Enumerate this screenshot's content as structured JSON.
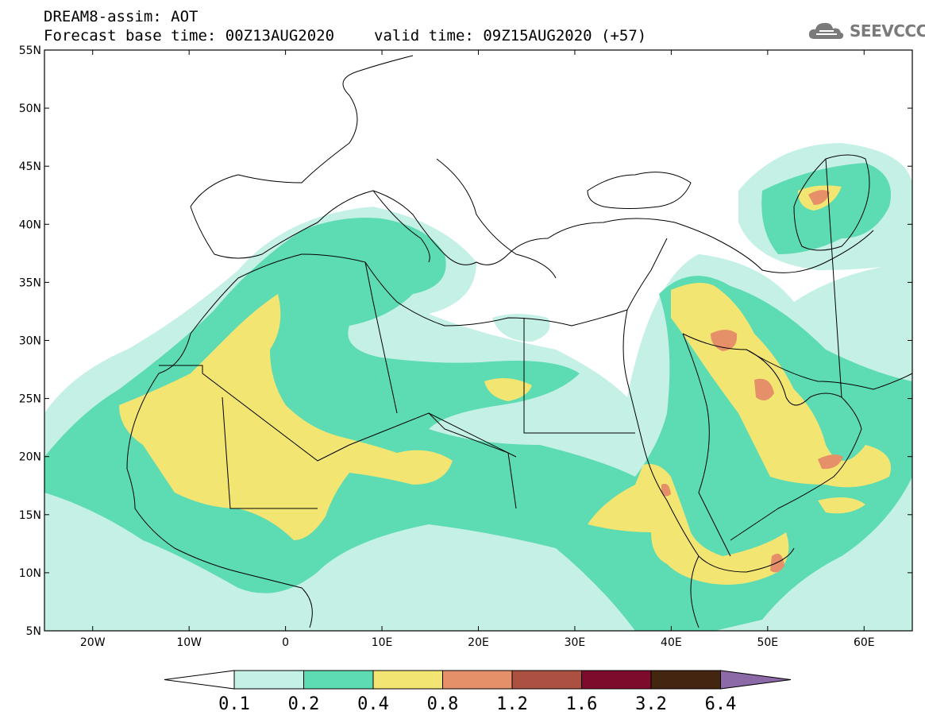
{
  "header": {
    "title_line1": "DREAM8-assim: AOT",
    "base_time": "Forecast base time: 00Z13AUG2020",
    "valid_time": "valid time: 09Z15AUG2020 (+57)",
    "logo_text": "SEEVCCC",
    "logo_icon": "cloud-icon"
  },
  "map": {
    "lon_range": [
      -25,
      65
    ],
    "lat_range": [
      5,
      55
    ],
    "lat_ticks": [
      "55N",
      "50N",
      "45N",
      "40N",
      "35N",
      "30N",
      "25N",
      "20N",
      "15N",
      "10N",
      "5N"
    ],
    "lat_values": [
      55,
      50,
      45,
      40,
      35,
      30,
      25,
      20,
      15,
      10,
      5
    ],
    "lon_ticks": [
      "20W",
      "10W",
      "0",
      "10E",
      "20E",
      "30E",
      "40E",
      "50E",
      "60E"
    ],
    "lon_values": [
      -20,
      -10,
      0,
      10,
      20,
      30,
      40,
      50,
      60
    ]
  },
  "colorbar": {
    "labels": [
      "0.1",
      "0.2",
      "0.4",
      "0.8",
      "1.2",
      "1.6",
      "3.2",
      "6.4"
    ],
    "colors": [
      "#c4f0e6",
      "#5ddbb3",
      "#f3e572",
      "#e59069",
      "#ac5041",
      "#7d0b2c",
      "#44250f",
      "#8c6aa8"
    ],
    "under_color": "#ffffff"
  }
}
